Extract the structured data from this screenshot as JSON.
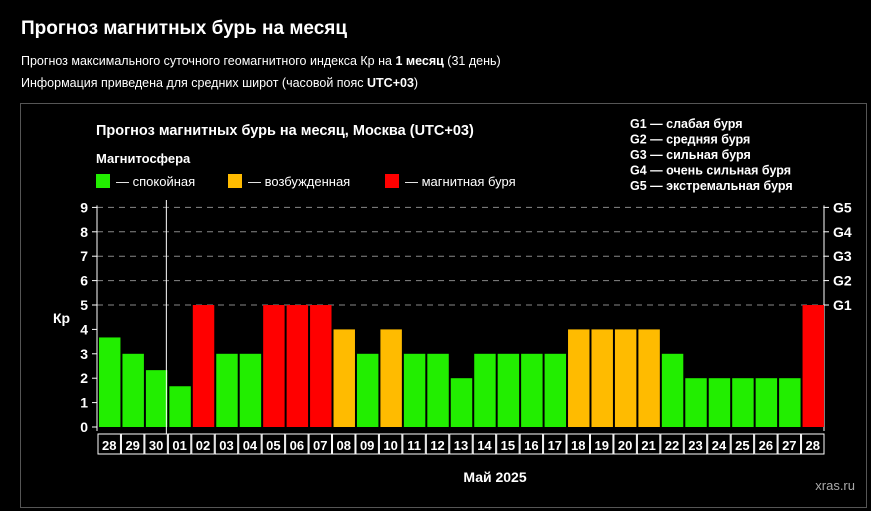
{
  "page": {
    "title": "Прогноз магнитных бурь на месяц",
    "subtitle1_prefix": "Прогноз максимального суточного геомагнитного индекса Кр на ",
    "subtitle1_bold": "1 месяц",
    "subtitle1_suffix": " (31 день)",
    "subtitle2_prefix": "Информация приведена для средних широт (часовой пояс ",
    "subtitle2_bold": "UTC+03",
    "subtitle2_suffix": ")"
  },
  "colors": {
    "calm": "#22ee00",
    "excited": "#ffbb00",
    "storm": "#ff0000",
    "background": "#000000",
    "grid": "#888888"
  },
  "chart_data": {
    "type": "bar",
    "title": "Прогноз магнитных бурь на месяц, Москва (UTC+03)",
    "legend_title": "Магнитосфера",
    "legend": [
      {
        "label": "— спокойная",
        "level": "calm"
      },
      {
        "label": "— возбужденная",
        "level": "excited"
      },
      {
        "label": "— магнитная буря",
        "level": "storm"
      }
    ],
    "g_legend": [
      "G1 — слабая буря",
      "G2 — средняя буря",
      "G3 — сильная буря",
      "G4 — очень сильная буря",
      "G5 — экстремальная буря"
    ],
    "ylabel": "Кр",
    "xlabel": "Май 2025",
    "ylim": [
      0,
      9
    ],
    "yticks": [
      "0",
      "1",
      "2",
      "3",
      "4",
      "5",
      "6",
      "7",
      "8",
      "9"
    ],
    "right_ticks": [
      {
        "kp": 5,
        "label": "G1"
      },
      {
        "kp": 6,
        "label": "G2"
      },
      {
        "kp": 7,
        "label": "G3"
      },
      {
        "kp": 8,
        "label": "G4"
      },
      {
        "kp": 9,
        "label": "G5"
      }
    ],
    "current_day_index": 3,
    "categories": [
      "28",
      "29",
      "30",
      "01",
      "02",
      "03",
      "04",
      "05",
      "06",
      "07",
      "08",
      "09",
      "10",
      "11",
      "12",
      "13",
      "14",
      "15",
      "16",
      "17",
      "18",
      "19",
      "20",
      "21",
      "22",
      "23",
      "24",
      "25",
      "26",
      "27",
      "28"
    ],
    "values": [
      3.67,
      3,
      2.33,
      1.67,
      5,
      3,
      3,
      5,
      5,
      5,
      4,
      3,
      4,
      3,
      3,
      2,
      3,
      3,
      3,
      3,
      4,
      4,
      4,
      4,
      3,
      2,
      2,
      2,
      2,
      2,
      5
    ],
    "levels": [
      "calm",
      "calm",
      "calm",
      "calm",
      "storm",
      "calm",
      "calm",
      "storm",
      "storm",
      "storm",
      "excited",
      "calm",
      "excited",
      "calm",
      "calm",
      "calm",
      "calm",
      "calm",
      "calm",
      "calm",
      "excited",
      "excited",
      "excited",
      "excited",
      "calm",
      "calm",
      "calm",
      "calm",
      "calm",
      "calm",
      "storm"
    ]
  },
  "watermark": "xras.ru"
}
